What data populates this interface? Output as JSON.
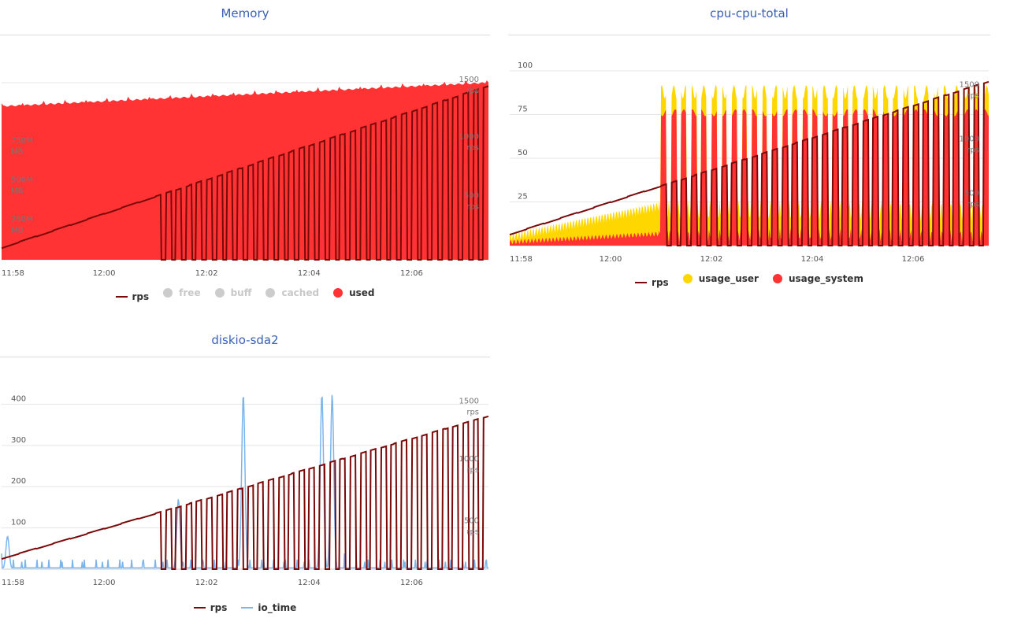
{
  "colors": {
    "rps": "#7a0a0a",
    "used": "#ff3333",
    "inactive": "#cccccc",
    "usage_user": "#ffd700",
    "usage_system": "#ff3333",
    "io_time": "#7cb5ec",
    "title": "#3a5fb3",
    "grid": "#e6e6e6"
  },
  "chart_data": [
    {
      "id": "memory",
      "type": "area",
      "title": "Memory",
      "x_range": [
        "11:58",
        "12:07:30"
      ],
      "x_ticks": [
        "11:58",
        "12:00",
        "12:02",
        "12:04",
        "12:06"
      ],
      "y_axis_right": {
        "ticks": [
          "500 rps",
          "1000 rps",
          "1500 rps"
        ]
      },
      "y_axis_left": {
        "ticks": [
          "250M MB",
          "500M MB",
          "750M MB"
        ]
      },
      "legend": [
        {
          "name": "rps",
          "symbol": "line",
          "color": "#7a0a0a",
          "active": true
        },
        {
          "name": "free",
          "symbol": "dot",
          "color": "#cccccc",
          "active": false
        },
        {
          "name": "buff",
          "symbol": "dot",
          "color": "#cccccc",
          "active": false
        },
        {
          "name": "cached",
          "symbol": "dot",
          "color": "#cccccc",
          "active": false
        },
        {
          "name": "used",
          "symbol": "dot",
          "color": "#ff3333",
          "active": true
        }
      ],
      "series": [
        {
          "name": "used",
          "unit": "MB",
          "start": 850,
          "end": 950
        },
        {
          "name": "rps",
          "unit": "rps",
          "step_start": 100,
          "step_end": 1500
        }
      ]
    },
    {
      "id": "cpu",
      "type": "area",
      "title": "cpu-cpu-total",
      "x_range": [
        "11:58",
        "12:07:30"
      ],
      "x_ticks": [
        "11:58",
        "12:00",
        "12:02",
        "12:04",
        "12:06"
      ],
      "y_axis_left": {
        "ticks": [
          "25",
          "50",
          "75",
          "100"
        ],
        "range": [
          0,
          100
        ]
      },
      "y_axis_right": {
        "ticks": [
          "500 rps",
          "1000 rps",
          "1500 rps"
        ]
      },
      "legend": [
        {
          "name": "rps",
          "symbol": "line",
          "color": "#7a0a0a",
          "active": true
        },
        {
          "name": "usage_user",
          "symbol": "dot",
          "color": "#ffd700",
          "active": true
        },
        {
          "name": "usage_system",
          "symbol": "dot",
          "color": "#ff3333",
          "active": true
        }
      ],
      "series": [
        {
          "name": "usage_user",
          "unit": "%",
          "peak": 93
        },
        {
          "name": "usage_system",
          "unit": "%",
          "peak": 78
        },
        {
          "name": "rps",
          "unit": "rps",
          "step_start": 100,
          "step_end": 1500
        }
      ]
    },
    {
      "id": "diskio",
      "type": "line",
      "title": "diskio-sda2",
      "x_range": [
        "11:58",
        "12:07:30"
      ],
      "x_ticks": [
        "11:58",
        "12:00",
        "12:02",
        "12:04",
        "12:06"
      ],
      "y_axis_left": {
        "ticks": [
          "100",
          "200",
          "300",
          "400"
        ],
        "range": [
          0,
          420
        ]
      },
      "y_axis_right": {
        "ticks": [
          "500 rps",
          "1000 rps",
          "1500 rps"
        ]
      },
      "legend": [
        {
          "name": "rps",
          "symbol": "line",
          "color": "#7a0a0a",
          "active": true
        },
        {
          "name": "io_time",
          "symbol": "line",
          "color": "#7cb5ec",
          "active": true
        }
      ],
      "series": [
        {
          "name": "rps",
          "unit": "rps",
          "step_start": 100,
          "step_end": 1500
        },
        {
          "name": "io_time",
          "peaks": [
            {
              "time": "11:58:07",
              "value": 80
            },
            {
              "time": "12:01:27",
              "value": 170
            },
            {
              "time": "12:02:43",
              "value": 425
            },
            {
              "time": "12:04:15",
              "value": 425
            },
            {
              "time": "12:04:27",
              "value": 425
            }
          ]
        }
      ]
    }
  ]
}
